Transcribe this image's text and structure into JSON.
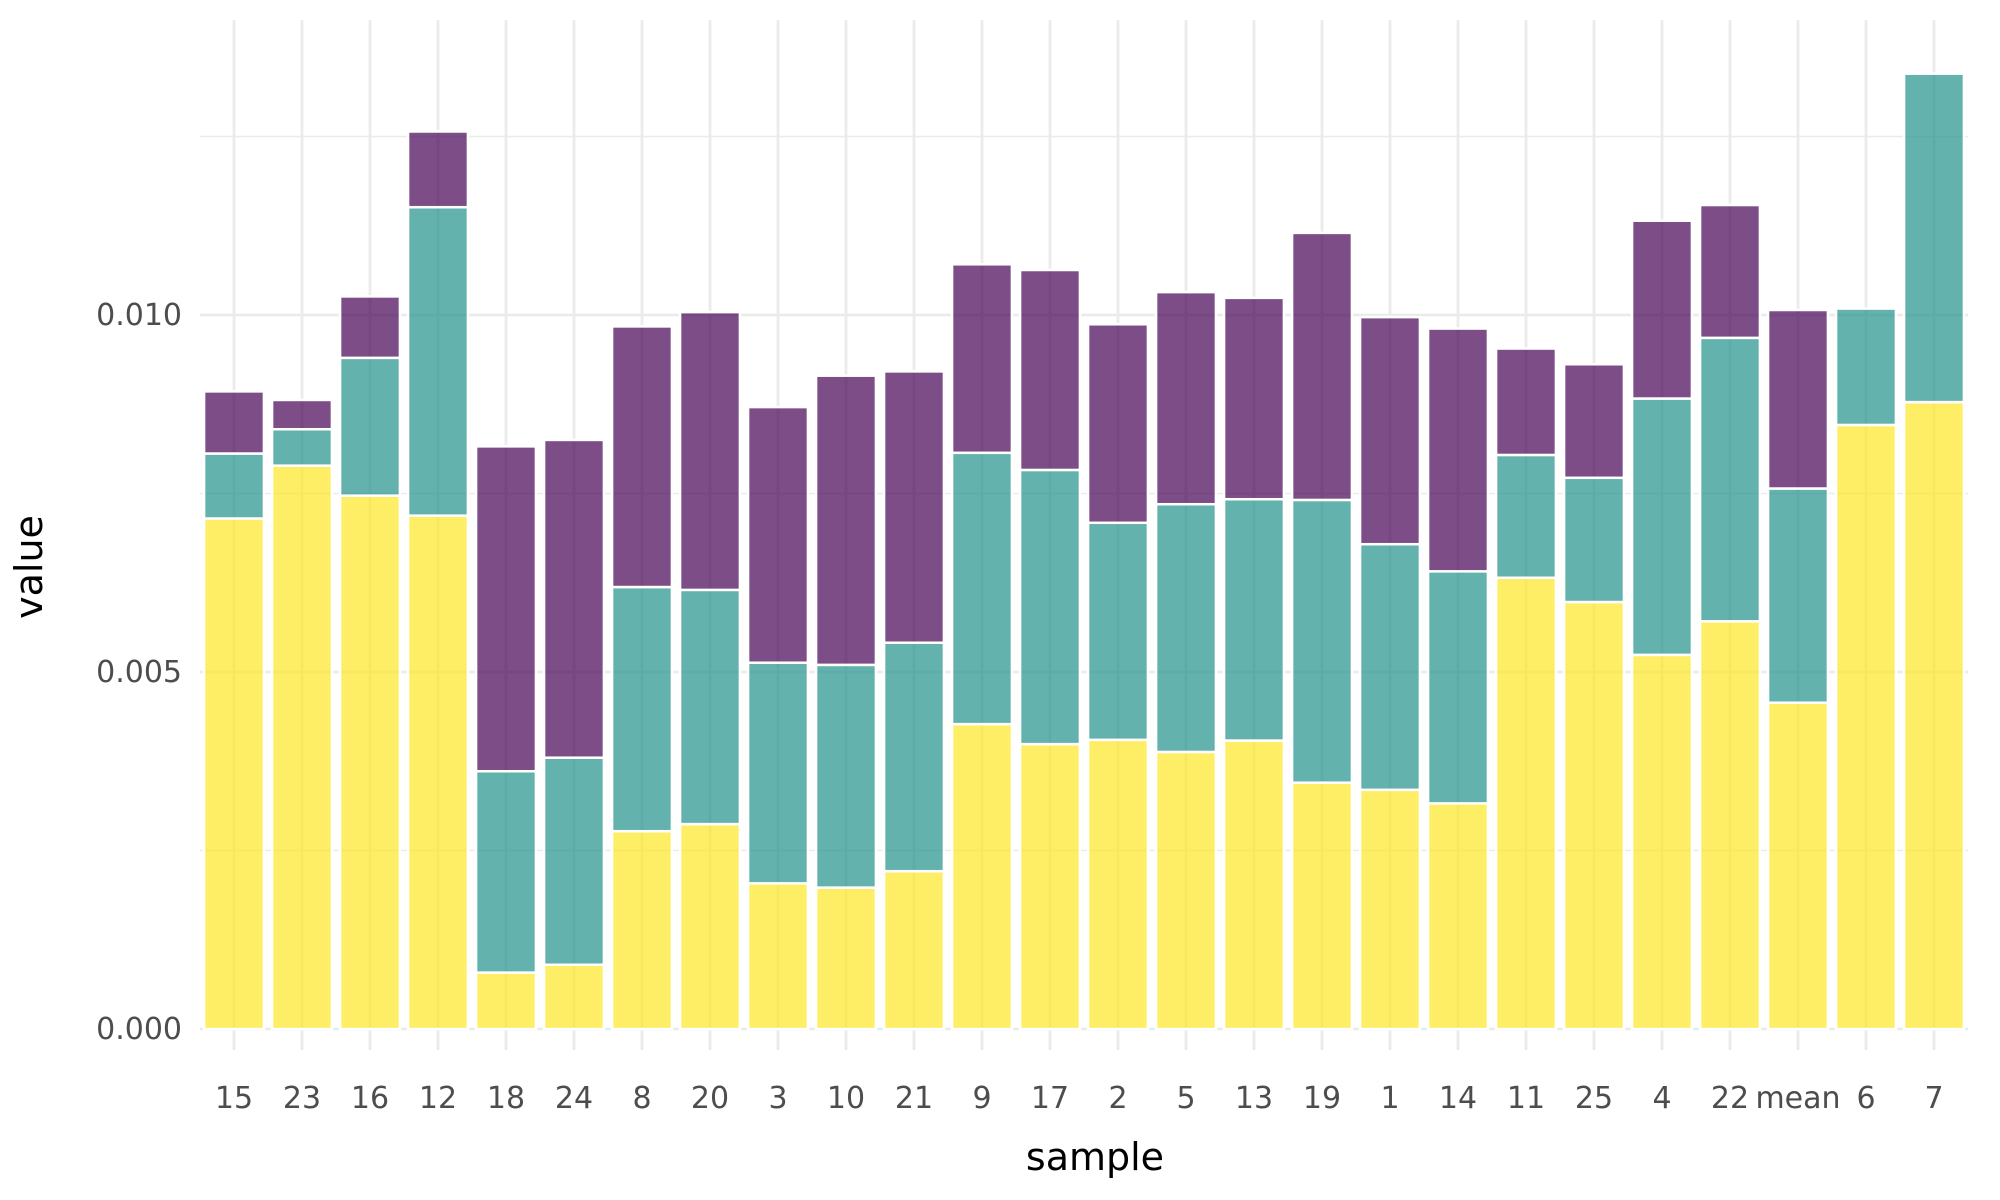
{
  "chart_data": {
    "type": "bar",
    "stacked": true,
    "title": "",
    "xlabel": "sample",
    "ylabel": "value",
    "ylim": [
      -0.0006,
      0.0135
    ],
    "yticks": [
      0.0,
      0.005,
      0.01
    ],
    "ytick_labels": [
      "0.000",
      "0.005",
      "0.010"
    ],
    "grid": true,
    "legend": "none",
    "categories": [
      "15",
      "23",
      "16",
      "12",
      "18",
      "24",
      "8",
      "20",
      "3",
      "10",
      "21",
      "9",
      "17",
      "2",
      "5",
      "13",
      "19",
      "1",
      "14",
      "11",
      "25",
      "4",
      "22",
      "mean",
      "6",
      "7"
    ],
    "series": [
      {
        "color": "#fde725",
        "values": [
          0.00715,
          0.00789,
          0.00747,
          0.00719,
          0.00079,
          0.0009,
          0.00277,
          0.00287,
          0.00204,
          0.00198,
          0.00221,
          0.00427,
          0.00399,
          0.00405,
          0.00388,
          0.00404,
          0.00345,
          0.00335,
          0.00316,
          0.00632,
          0.00598,
          0.00524,
          0.00571,
          0.00457,
          0.00846,
          0.00878
        ]
      },
      {
        "color": "#21918c",
        "values": [
          0.00091,
          0.00051,
          0.00193,
          0.00432,
          0.00282,
          0.0029,
          0.00342,
          0.00328,
          0.00309,
          0.00312,
          0.0032,
          0.0038,
          0.00384,
          0.00304,
          0.00347,
          0.00338,
          0.00396,
          0.00344,
          0.00325,
          0.00172,
          0.00174,
          0.00359,
          0.00397,
          0.003,
          0.00163,
          0.0046
        ]
      },
      {
        "color": "#440154",
        "values": [
          0.00087,
          0.00041,
          0.00086,
          0.00106,
          0.00455,
          0.00445,
          0.00365,
          0.00389,
          0.00358,
          0.00405,
          0.0038,
          0.00264,
          0.0028,
          0.00278,
          0.00297,
          0.00282,
          0.00374,
          0.00318,
          0.0034,
          0.00149,
          0.00159,
          0.00249,
          0.00186,
          0.0025,
          0.0,
          0.0
        ]
      }
    ]
  }
}
